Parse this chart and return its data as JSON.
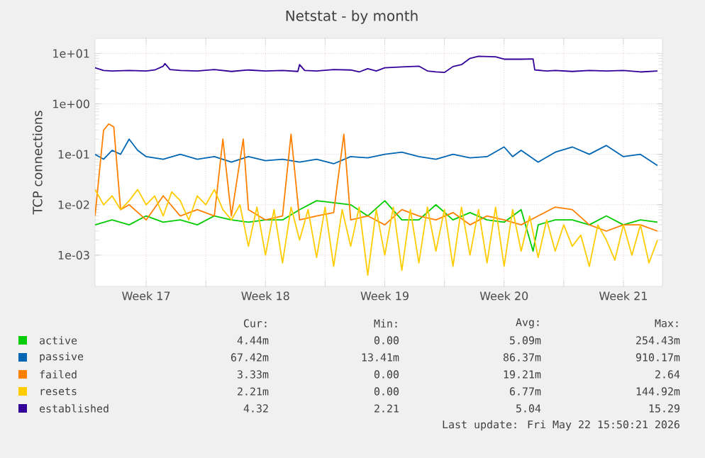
{
  "chart_data": {
    "type": "line",
    "title": "Netstat - by month",
    "ylabel": "TCP connections",
    "log": "y",
    "grid": true,
    "legend": "bottom",
    "xlim": [
      "2026-04-20T12:00",
      "2026-05-23T19:00"
    ],
    "xticks": [
      {
        "value": "2026-04-23T12:00",
        "label": "Week 17"
      },
      {
        "value": "2026-04-27T00:00",
        "label": null
      },
      {
        "value": "2026-04-30T12:00",
        "label": "Week 18"
      },
      {
        "value": "2026-05-04T00:00",
        "label": null
      },
      {
        "value": "2026-05-07T12:00",
        "label": "Week 19"
      },
      {
        "value": "2026-05-11T00:00",
        "label": null
      },
      {
        "value": "2026-05-14T12:00",
        "label": "Week 20"
      },
      {
        "value": "2026-05-18T00:00",
        "label": null
      },
      {
        "value": "2026-05-21T12:00",
        "label": "Week 21"
      }
    ],
    "ylim": [
      0.00024,
      20
    ],
    "yticks": [
      {
        "value": 0.001,
        "label": "1e-03"
      },
      {
        "value": 0.01,
        "label": "1e-02"
      },
      {
        "value": 0.1,
        "label": "1e-01"
      },
      {
        "value": 1,
        "label": "1e+00"
      },
      {
        "value": 10,
        "label": "1e+01"
      }
    ],
    "series": [
      {
        "name": "active",
        "color": "#00cc00",
        "x": [
          "2026-04-20T12:00",
          "2026-04-21T12:00",
          "2026-04-22T12:00",
          "2026-04-23T12:00",
          "2026-04-24T12:00",
          "2026-04-25T12:00",
          "2026-04-26T12:00",
          "2026-04-27T12:00",
          "2026-04-28T12:00",
          "2026-04-29T12:00",
          "2026-04-30T12:00",
          "2026-05-01T12:00",
          "2026-05-02T12:00",
          "2026-05-03T12:00",
          "2026-05-04T12:00",
          "2026-05-05T12:00",
          "2026-05-06T12:00",
          "2026-05-07T12:00",
          "2026-05-08T12:00",
          "2026-05-09T12:00",
          "2026-05-10T12:00",
          "2026-05-11T12:00",
          "2026-05-12T12:00",
          "2026-05-13T12:00",
          "2026-05-14T12:00",
          "2026-05-15T12:00",
          "2026-05-16T04:48",
          "2026-05-16T12:00",
          "2026-05-17T12:00",
          "2026-05-18T12:00",
          "2026-05-19T12:00",
          "2026-05-20T12:00",
          "2026-05-21T12:00",
          "2026-05-22T12:00",
          "2026-05-23T12:00"
        ],
        "values": [
          0.004,
          0.005,
          0.004,
          0.006,
          0.0045,
          0.005,
          0.004,
          0.006,
          0.005,
          0.0045,
          0.005,
          0.005,
          0.008,
          0.012,
          0.011,
          0.01,
          0.006,
          0.012,
          0.005,
          0.005,
          0.01,
          0.005,
          0.007,
          0.005,
          0.0045,
          0.008,
          0.0012,
          0.004,
          0.005,
          0.005,
          0.004,
          0.006,
          0.004,
          0.005,
          0.0045
        ]
      },
      {
        "name": "passive",
        "color": "#0066b3",
        "x": [
          "2026-04-20T12:00",
          "2026-04-21T00:00",
          "2026-04-21T12:00",
          "2026-04-22T00:00",
          "2026-04-22T12:00",
          "2026-04-23T00:00",
          "2026-04-23T12:00",
          "2026-04-24T12:00",
          "2026-04-25T12:00",
          "2026-04-26T12:00",
          "2026-04-27T12:00",
          "2026-04-28T12:00",
          "2026-04-29T12:00",
          "2026-04-30T12:00",
          "2026-05-01T12:00",
          "2026-05-02T12:00",
          "2026-05-03T12:00",
          "2026-05-04T12:00",
          "2026-05-05T12:00",
          "2026-05-06T12:00",
          "2026-05-07T12:00",
          "2026-05-08T12:00",
          "2026-05-09T12:00",
          "2026-05-10T12:00",
          "2026-05-11T12:00",
          "2026-05-12T12:00",
          "2026-05-13T12:00",
          "2026-05-14T12:00",
          "2026-05-15T00:00",
          "2026-05-15T12:00",
          "2026-05-16T12:00",
          "2026-05-17T12:00",
          "2026-05-18T12:00",
          "2026-05-19T12:00",
          "2026-05-20T12:00",
          "2026-05-21T12:00",
          "2026-05-22T12:00",
          "2026-05-23T12:00"
        ],
        "values": [
          0.1,
          0.08,
          0.12,
          0.1,
          0.2,
          0.12,
          0.09,
          0.08,
          0.1,
          0.08,
          0.09,
          0.07,
          0.09,
          0.075,
          0.08,
          0.07,
          0.08,
          0.065,
          0.09,
          0.085,
          0.1,
          0.11,
          0.09,
          0.08,
          0.1,
          0.085,
          0.09,
          0.14,
          0.09,
          0.12,
          0.07,
          0.11,
          0.14,
          0.1,
          0.15,
          0.09,
          0.1,
          0.06
        ]
      },
      {
        "name": "failed",
        "color": "#ff8000",
        "x": [
          "2026-04-20T12:00",
          "2026-04-21T00:00",
          "2026-04-21T07:12",
          "2026-04-21T14:24",
          "2026-04-22T00:00",
          "2026-04-22T12:00",
          "2026-04-23T12:00",
          "2026-04-24T12:00",
          "2026-04-25T12:00",
          "2026-04-26T12:00",
          "2026-04-27T12:00",
          "2026-04-28T00:00",
          "2026-04-28T12:00",
          "2026-04-29T04:48",
          "2026-04-29T12:00",
          "2026-04-30T12:00",
          "2026-05-01T12:00",
          "2026-05-02T00:00",
          "2026-05-02T12:00",
          "2026-05-03T12:00",
          "2026-05-04T12:00",
          "2026-05-05T02:24",
          "2026-05-05T12:00",
          "2026-05-06T12:00",
          "2026-05-07T12:00",
          "2026-05-08T12:00",
          "2026-05-09T12:00",
          "2026-05-10T12:00",
          "2026-05-11T12:00",
          "2026-05-12T12:00",
          "2026-05-13T12:00",
          "2026-05-14T12:00",
          "2026-05-15T12:00",
          "2026-05-16T12:00",
          "2026-05-17T12:00",
          "2026-05-18T12:00",
          "2026-05-19T12:00",
          "2026-05-20T12:00",
          "2026-05-21T12:00",
          "2026-05-22T12:00",
          "2026-05-23T12:00"
        ],
        "values": [
          0.006,
          0.3,
          0.4,
          0.35,
          0.008,
          0.01,
          0.005,
          0.015,
          0.006,
          0.008,
          0.006,
          0.2,
          0.006,
          0.2,
          0.008,
          0.005,
          0.006,
          0.25,
          0.005,
          0.006,
          0.007,
          0.25,
          0.005,
          0.006,
          0.004,
          0.008,
          0.006,
          0.005,
          0.007,
          0.004,
          0.006,
          0.005,
          0.004,
          0.006,
          0.009,
          0.008,
          0.004,
          0.003,
          0.004,
          0.004,
          0.003
        ]
      },
      {
        "name": "resets",
        "color": "#ffcc00",
        "x": [
          "2026-04-20T12:00",
          "2026-04-21T00:00",
          "2026-04-21T12:00",
          "2026-04-22T00:00",
          "2026-04-22T12:00",
          "2026-04-23T00:00",
          "2026-04-23T12:00",
          "2026-04-24T00:00",
          "2026-04-24T12:00",
          "2026-04-25T00:00",
          "2026-04-25T12:00",
          "2026-04-26T00:00",
          "2026-04-26T12:00",
          "2026-04-27T00:00",
          "2026-04-27T12:00",
          "2026-04-28T00:00",
          "2026-04-28T12:00",
          "2026-04-29T00:00",
          "2026-04-29T12:00",
          "2026-04-30T00:00",
          "2026-04-30T12:00",
          "2026-05-01T00:00",
          "2026-05-01T12:00",
          "2026-05-02T00:00",
          "2026-05-02T12:00",
          "2026-05-03T00:00",
          "2026-05-03T12:00",
          "2026-05-04T00:00",
          "2026-05-04T12:00",
          "2026-05-05T00:00",
          "2026-05-05T12:00",
          "2026-05-06T00:00",
          "2026-05-06T12:00",
          "2026-05-07T00:00",
          "2026-05-07T12:00",
          "2026-05-08T00:00",
          "2026-05-08T12:00",
          "2026-05-09T00:00",
          "2026-05-09T12:00",
          "2026-05-10T00:00",
          "2026-05-10T12:00",
          "2026-05-11T00:00",
          "2026-05-11T12:00",
          "2026-05-12T00:00",
          "2026-05-12T12:00",
          "2026-05-13T00:00",
          "2026-05-13T12:00",
          "2026-05-14T00:00",
          "2026-05-14T12:00",
          "2026-05-15T00:00",
          "2026-05-15T12:00",
          "2026-05-16T00:00",
          "2026-05-16T12:00",
          "2026-05-17T00:00",
          "2026-05-17T12:00",
          "2026-05-18T00:00",
          "2026-05-18T12:00",
          "2026-05-19T00:00",
          "2026-05-19T12:00",
          "2026-05-20T00:00",
          "2026-05-20T12:00",
          "2026-05-21T00:00",
          "2026-05-21T12:00",
          "2026-05-22T00:00",
          "2026-05-22T12:00",
          "2026-05-23T00:00",
          "2026-05-23T12:00"
        ],
        "values": [
          0.02,
          0.01,
          0.015,
          0.008,
          0.012,
          0.02,
          0.01,
          0.015,
          0.006,
          0.018,
          0.012,
          0.005,
          0.015,
          0.01,
          0.02,
          0.008,
          0.005,
          0.01,
          0.0015,
          0.009,
          0.001,
          0.008,
          0.0007,
          0.009,
          0.002,
          0.008,
          0.0009,
          0.009,
          0.0006,
          0.008,
          0.0015,
          0.009,
          0.0004,
          0.008,
          0.001,
          0.009,
          0.0005,
          0.008,
          0.0007,
          0.009,
          0.0012,
          0.008,
          0.0006,
          0.009,
          0.001,
          0.008,
          0.0007,
          0.009,
          0.0006,
          0.008,
          0.0012,
          0.006,
          0.0009,
          0.005,
          0.0012,
          0.004,
          0.0015,
          0.0025,
          0.0006,
          0.004,
          0.002,
          0.0008,
          0.004,
          0.001,
          0.004,
          0.0007,
          0.002
        ]
      },
      {
        "name": "established",
        "color": "#330099",
        "x": [
          "2026-04-20T12:00",
          "2026-04-21T00:00",
          "2026-04-21T12:00",
          "2026-04-22T12:00",
          "2026-04-23T12:00",
          "2026-04-24T00:00",
          "2026-04-24T12:00",
          "2026-04-24T14:24",
          "2026-04-24T21:36",
          "2026-04-25T12:00",
          "2026-04-26T12:00",
          "2026-04-27T12:00",
          "2026-04-28T12:00",
          "2026-04-29T12:00",
          "2026-04-30T12:00",
          "2026-05-01T12:00",
          "2026-05-02T09:36",
          "2026-05-02T12:00",
          "2026-05-02T19:12",
          "2026-05-03T12:00",
          "2026-05-04T12:00",
          "2026-05-05T12:00",
          "2026-05-06T00:00",
          "2026-05-06T12:00",
          "2026-05-07T00:00",
          "2026-05-07T12:00",
          "2026-05-08T12:00",
          "2026-05-09T12:00",
          "2026-05-10T00:00",
          "2026-05-10T12:00",
          "2026-05-11T00:00",
          "2026-05-11T12:00",
          "2026-05-12T00:00",
          "2026-05-12T12:00",
          "2026-05-13T00:00",
          "2026-05-14T00:00",
          "2026-05-14T12:00",
          "2026-05-15T12:00",
          "2026-05-16T04:48",
          "2026-05-16T07:12",
          "2026-05-17T00:00",
          "2026-05-17T12:00",
          "2026-05-18T12:00",
          "2026-05-19T12:00",
          "2026-05-20T12:00",
          "2026-05-21T12:00",
          "2026-05-22T12:00",
          "2026-05-23T12:00"
        ],
        "values": [
          5.2,
          4.6,
          4.5,
          4.6,
          4.5,
          4.7,
          5.6,
          6.3,
          4.8,
          4.6,
          4.5,
          4.8,
          4.4,
          4.7,
          4.5,
          4.6,
          4.4,
          6.0,
          4.6,
          4.5,
          4.8,
          4.7,
          4.3,
          5.0,
          4.5,
          5.2,
          5.4,
          5.6,
          4.5,
          4.3,
          4.2,
          5.5,
          6.0,
          8.0,
          8.8,
          8.6,
          7.7,
          7.7,
          7.8,
          4.7,
          4.5,
          4.6,
          4.4,
          4.6,
          4.5,
          4.6,
          4.3,
          4.5
        ]
      }
    ],
    "annotations": [
      "Cur:",
      "Min:",
      "Avg:",
      "Max:",
      "4.44m",
      "0.00",
      "5.09m",
      "254.43m",
      "67.42m",
      "13.41m",
      "86.37m",
      "910.17m",
      "3.33m",
      "0.00",
      "19.21m",
      "2.64",
      "2.21m",
      "0.00",
      "6.77m",
      "144.92m",
      "4.32",
      "2.21",
      "5.04",
      "15.29",
      "Last update: Fri May 22 15:50:21 2026"
    ]
  }
}
